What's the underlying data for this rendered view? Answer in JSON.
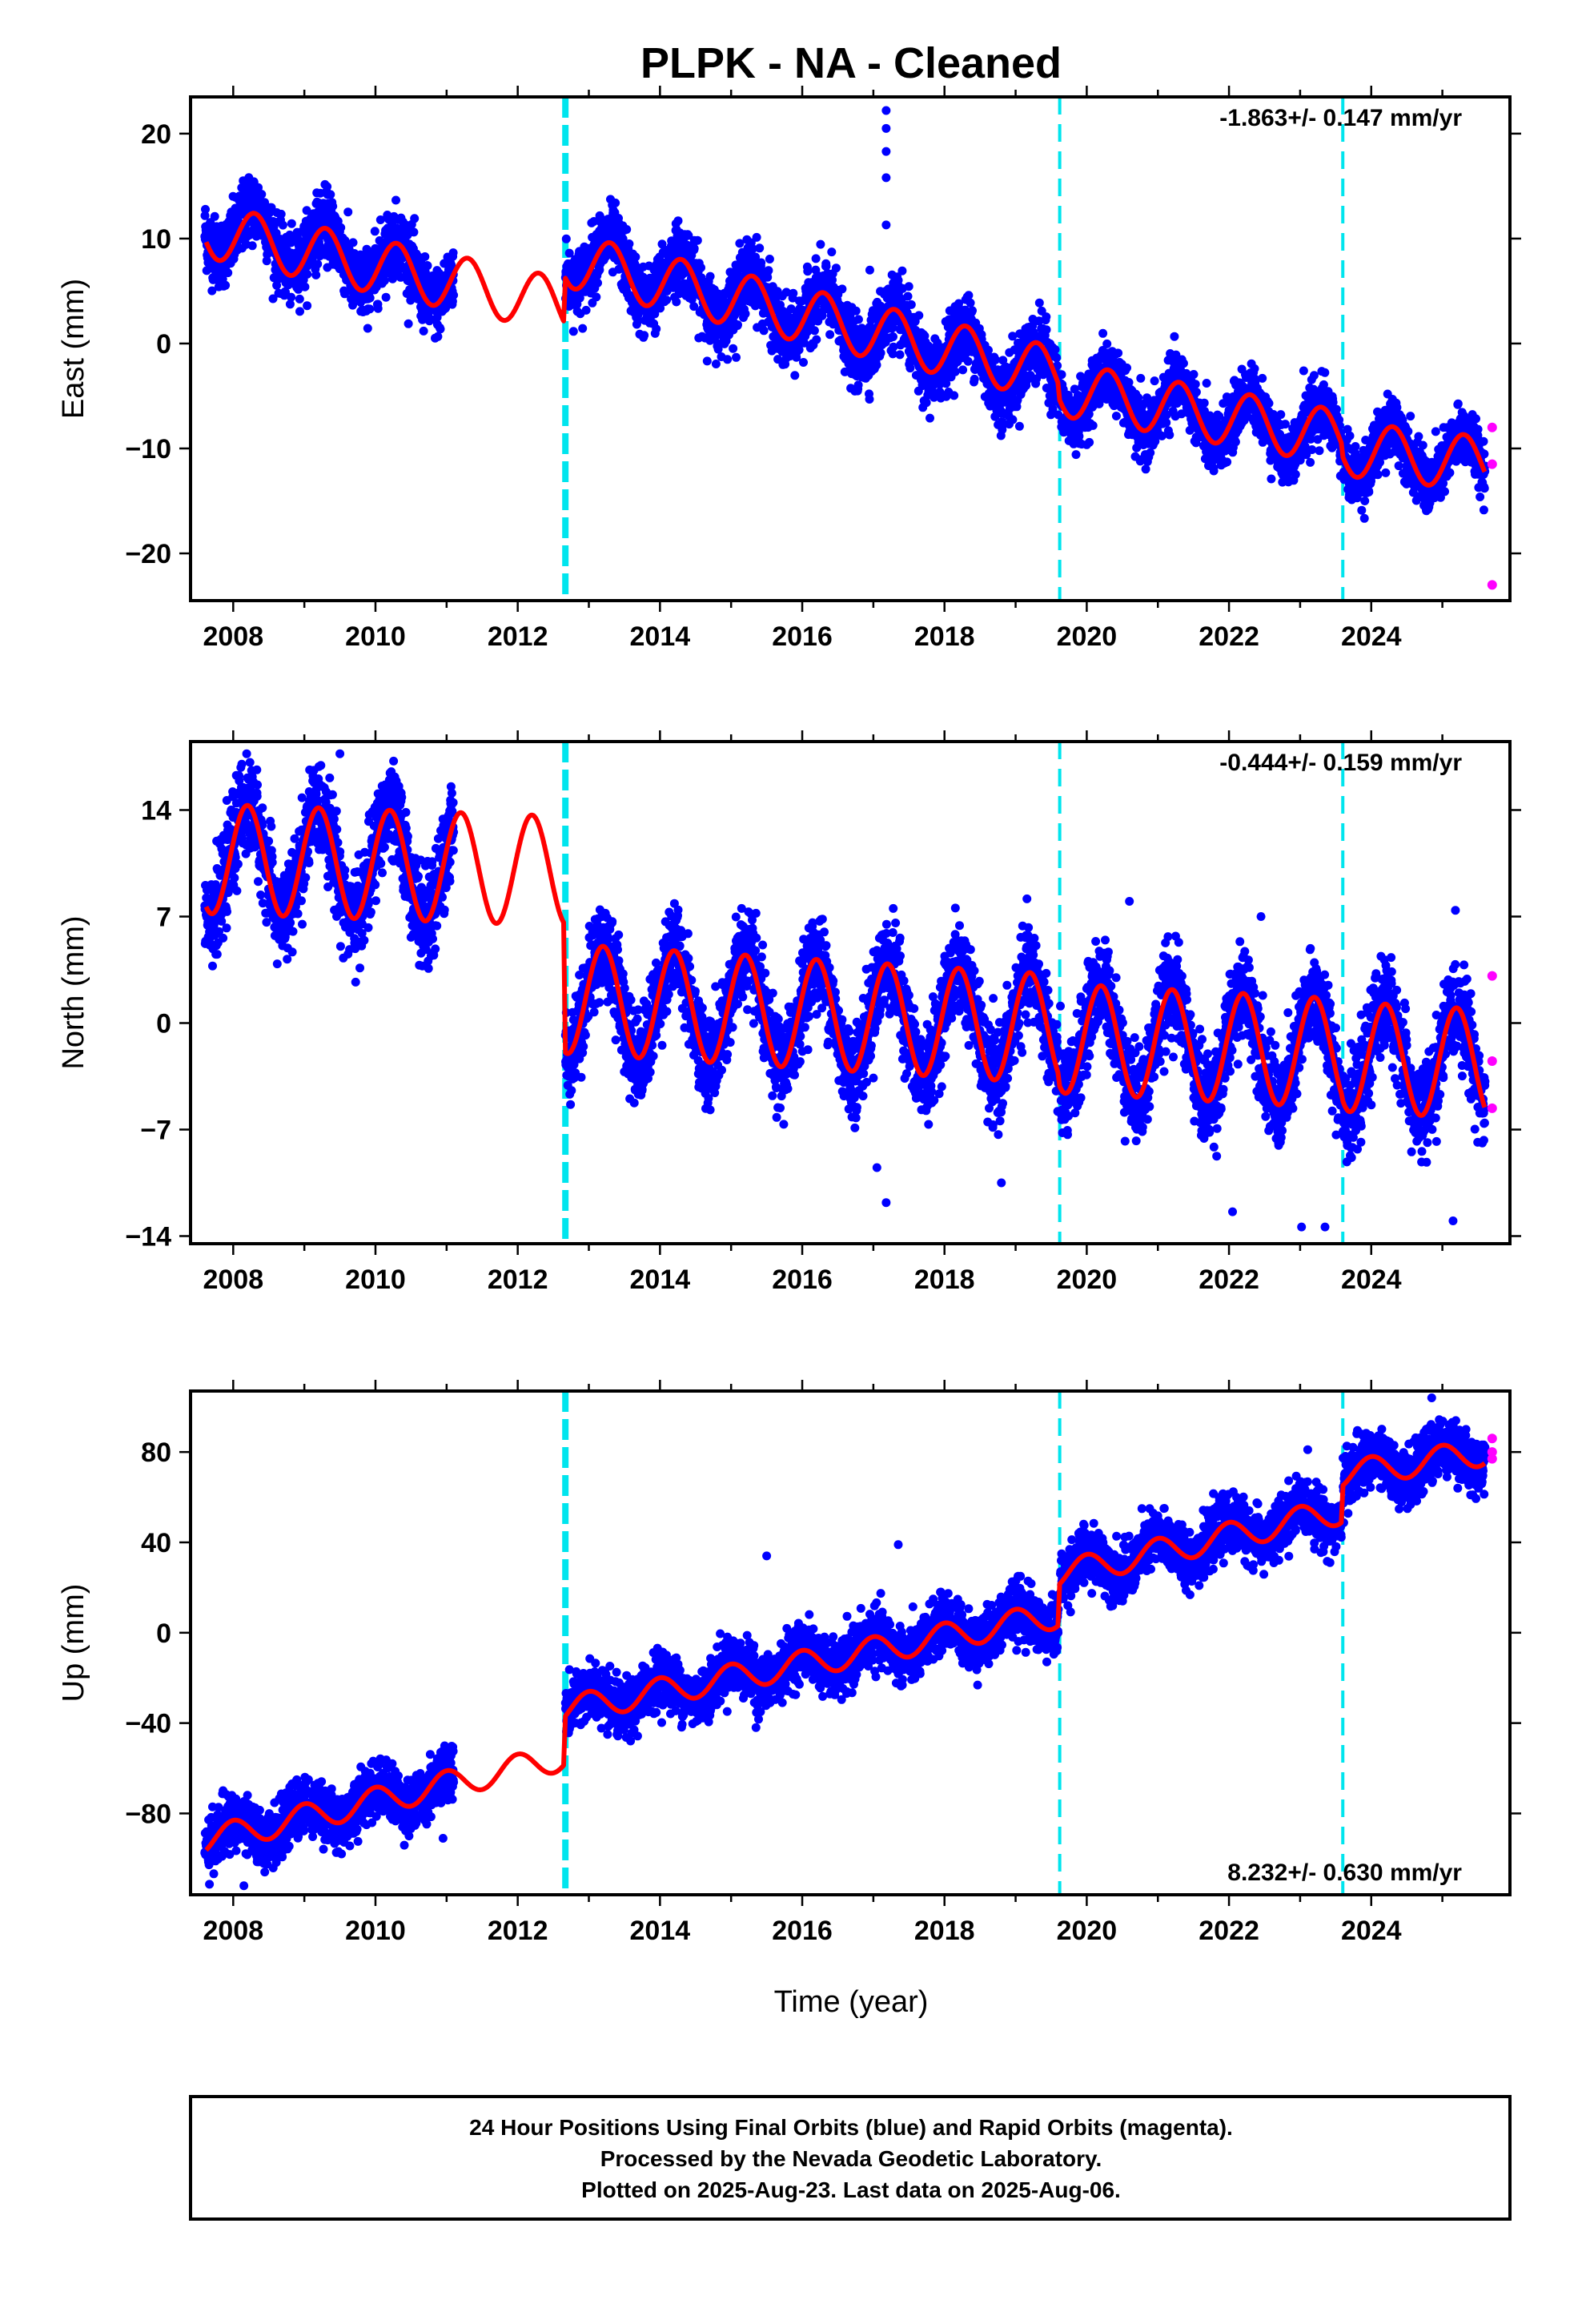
{
  "title": "PLPK  - NA - Cleaned",
  "xlabel": "Time (year)",
  "footer": {
    "line1": "24 Hour Positions Using Final Orbits (blue) and Rapid Orbits (magenta).",
    "line2": "Processed by the Nevada Geodetic Laboratory.",
    "line3": "Plotted on 2025-Aug-23. Last data on 2025-Aug-06."
  },
  "colors": {
    "final_orbits": "#0000ff",
    "rapid_orbits": "#ff00ff",
    "model": "#ff0000",
    "steps": "#00e5ee"
  },
  "chart_data": [
    {
      "type": "scatter",
      "panel": "east",
      "ylabel": "East (mm)",
      "rate_label": "-1.863+/- 0.147 mm/yr",
      "rate_position": "top-right",
      "xlim": [
        2007.4,
        2025.95
      ],
      "ylim": [
        -24.5,
        23.5
      ],
      "x_ticks": [
        2008,
        2010,
        2012,
        2014,
        2016,
        2018,
        2020,
        2022,
        2024
      ],
      "y_ticks": [
        -20,
        -10,
        0,
        10,
        20
      ],
      "y_tick_labels": [
        "−20",
        "−10",
        "0",
        "10",
        "20"
      ],
      "grid": false,
      "data_gap": [
        2011.1,
        2012.65
      ],
      "steps": [
        {
          "year": 2012.67,
          "style": "thick"
        },
        {
          "year": 2019.62,
          "style": "thin"
        },
        {
          "year": 2023.6,
          "style": "thin"
        }
      ],
      "seasonal_amplitude": 2.6,
      "seasonal_phase": 0.3,
      "segments": [
        {
          "x": [
            2007.6,
            2012.65
          ],
          "y0": 11.5,
          "y1": 3.5,
          "model_y0": 10.8,
          "model_y1": 3.6,
          "scatter": 1.6
        },
        {
          "x": [
            2012.67,
            2019.6
          ],
          "y0": 8.5,
          "y1": -3.5,
          "model_y0": 8.0,
          "model_y1": -3.0,
          "scatter": 1.6
        },
        {
          "x": [
            2019.62,
            2023.58
          ],
          "y0": -4.5,
          "y1": -9.0,
          "model_y0": -4.3,
          "model_y1": -9.0,
          "scatter": 1.4
        },
        {
          "x": [
            2023.6,
            2025.6
          ],
          "y0": -10.0,
          "y1": -11.5,
          "model_y0": -10.0,
          "model_y1": -11.5,
          "scatter": 1.4
        }
      ],
      "outliers": [
        {
          "x": 2017.18,
          "y": 22.2
        },
        {
          "x": 2017.18,
          "y": 20.5
        },
        {
          "x": 2017.18,
          "y": 18.3
        },
        {
          "x": 2017.18,
          "y": 15.8
        },
        {
          "x": 2017.18,
          "y": 11.3
        },
        {
          "x": 2016.95,
          "y": 7.0
        },
        {
          "x": 2023.05,
          "y": -2.6
        }
      ],
      "rapid_points": [
        {
          "x": 2025.7,
          "y": -8.0
        },
        {
          "x": 2025.7,
          "y": -11.5
        },
        {
          "x": 2025.7,
          "y": -23.0
        }
      ]
    },
    {
      "type": "scatter",
      "panel": "north",
      "ylabel": "North (mm)",
      "rate_label": "-0.444+/- 0.159 mm/yr",
      "rate_position": "top-right",
      "xlim": [
        2007.4,
        2025.95
      ],
      "ylim": [
        -14.5,
        18.5
      ],
      "x_ticks": [
        2008,
        2010,
        2012,
        2014,
        2016,
        2018,
        2020,
        2022,
        2024
      ],
      "y_ticks": [
        -14,
        -7,
        0,
        7,
        14
      ],
      "y_tick_labels": [
        "−14",
        "−7",
        "0",
        "7",
        "14"
      ],
      "grid": false,
      "data_gap": [
        2011.1,
        2012.65
      ],
      "steps": [
        {
          "year": 2012.67,
          "style": "thick"
        },
        {
          "year": 2019.62,
          "style": "thin"
        },
        {
          "year": 2023.6,
          "style": "thin"
        }
      ],
      "seasonal_amplitude": 3.6,
      "seasonal_phase": 0.2,
      "segments": [
        {
          "x": [
            2007.6,
            2012.65
          ],
          "y0": 10.8,
          "y1": 10.0,
          "model_y0": 10.8,
          "model_y1": 10.0,
          "scatter": 1.5
        },
        {
          "x": [
            2012.67,
            2019.6
          ],
          "y0": 1.6,
          "y1": -0.4,
          "model_y0": 1.6,
          "model_y1": -0.4,
          "scatter": 1.5
        },
        {
          "x": [
            2019.62,
            2023.58
          ],
          "y0": -1.0,
          "y1": -2.0,
          "model_y0": -1.0,
          "model_y1": -2.0,
          "scatter": 1.5
        },
        {
          "x": [
            2023.6,
            2025.6
          ],
          "y0": -2.2,
          "y1": -2.7,
          "model_y0": -2.2,
          "model_y1": -2.7,
          "scatter": 1.5
        }
      ],
      "outliers": [
        {
          "x": 2009.5,
          "y": 17.7
        },
        {
          "x": 2017.18,
          "y": -11.8
        },
        {
          "x": 2017.05,
          "y": -9.5
        },
        {
          "x": 2020.6,
          "y": 8.0
        },
        {
          "x": 2022.45,
          "y": 7.0
        },
        {
          "x": 2022.05,
          "y": -12.4
        },
        {
          "x": 2023.02,
          "y": -13.4
        },
        {
          "x": 2023.35,
          "y": -13.4
        },
        {
          "x": 2025.15,
          "y": -13.0
        },
        {
          "x": 2018.8,
          "y": -10.5
        }
      ],
      "rapid_points": [
        {
          "x": 2025.7,
          "y": 3.1
        },
        {
          "x": 2025.7,
          "y": -2.5
        },
        {
          "x": 2025.7,
          "y": -5.6
        }
      ]
    },
    {
      "type": "scatter",
      "panel": "up",
      "ylabel": "Up (mm)",
      "rate_label": "8.232+/- 0.630 mm/yr",
      "rate_position": "bottom-right",
      "xlim": [
        2007.4,
        2025.95
      ],
      "ylim": [
        -116,
        107
      ],
      "x_ticks": [
        2008,
        2010,
        2012,
        2014,
        2016,
        2018,
        2020,
        2022,
        2024
      ],
      "y_ticks": [
        -80,
        -40,
        0,
        40,
        80
      ],
      "y_tick_labels": [
        "−80",
        "−40",
        "0",
        "40",
        "80"
      ],
      "grid": false,
      "data_gap": [
        2011.1,
        2012.65
      ],
      "steps": [
        {
          "year": 2012.67,
          "style": "thick"
        },
        {
          "year": 2019.62,
          "style": "thin"
        },
        {
          "year": 2023.6,
          "style": "thin"
        }
      ],
      "seasonal_amplitude": 6.0,
      "seasonal_phase": 0.0,
      "segments": [
        {
          "x": [
            2007.6,
            2012.65
          ],
          "y0": -92,
          "y1": -55,
          "model_y0": -92,
          "model_y1": -55,
          "scatter": 6
        },
        {
          "x": [
            2012.67,
            2019.6
          ],
          "y0": -34,
          "y1": 8,
          "model_y0": -34,
          "model_y1": 8,
          "scatter": 6
        },
        {
          "x": [
            2019.62,
            2023.58
          ],
          "y0": 26,
          "y1": 54,
          "model_y0": 26,
          "model_y1": 54,
          "scatter": 6
        },
        {
          "x": [
            2023.6,
            2025.6
          ],
          "y0": 70,
          "y1": 80,
          "model_y0": 70,
          "model_y1": 80,
          "scatter": 6
        }
      ],
      "outliers": [
        {
          "x": 2017.35,
          "y": 39
        },
        {
          "x": 2015.5,
          "y": 34
        },
        {
          "x": 2015.35,
          "y": -42
        },
        {
          "x": 2010.95,
          "y": -91
        },
        {
          "x": 2008.15,
          "y": -112
        },
        {
          "x": 2024.85,
          "y": 104
        }
      ],
      "rapid_points": [
        {
          "x": 2025.7,
          "y": 86
        },
        {
          "x": 2025.7,
          "y": 80
        },
        {
          "x": 2025.7,
          "y": 77
        }
      ]
    }
  ]
}
